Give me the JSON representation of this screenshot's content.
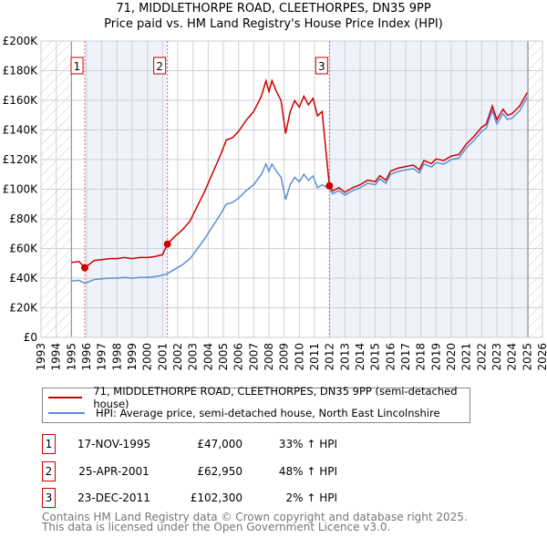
{
  "header": {
    "title": "71, MIDDLETHORPE ROAD, CLEETHORPES, DN35 9PP",
    "subtitle": "Price paid vs. HM Land Registry's House Price Index (HPI)"
  },
  "colors": {
    "property": "#cc0000",
    "hpi": "#5b8fd4",
    "band": "#eef3fb"
  },
  "chart_data": {
    "type": "line",
    "title": "71, MIDDLETHORPE ROAD, CLEETHORPES, DN35 9PP",
    "xlim": [
      1993,
      2026
    ],
    "ylim": [
      0,
      200000
    ],
    "x_ticks": [
      "1993",
      "1994",
      "1995",
      "1996",
      "1997",
      "1998",
      "1999",
      "2000",
      "2001",
      "2002",
      "2003",
      "2004",
      "2005",
      "2006",
      "2007",
      "2008",
      "2009",
      "2010",
      "2011",
      "2012",
      "2013",
      "2014",
      "2015",
      "2016",
      "2017",
      "2018",
      "2019",
      "2020",
      "2021",
      "2022",
      "2023",
      "2024",
      "2025",
      "2026"
    ],
    "y_ticks": [
      {
        "v": 0,
        "label": "£0"
      },
      {
        "v": 20000,
        "label": "£20K"
      },
      {
        "v": 40000,
        "label": "£40K"
      },
      {
        "v": 60000,
        "label": "£60K"
      },
      {
        "v": 80000,
        "label": "£80K"
      },
      {
        "v": 100000,
        "label": "£100K"
      },
      {
        "v": 120000,
        "label": "£120K"
      },
      {
        "v": 140000,
        "label": "£140K"
      },
      {
        "v": 160000,
        "label": "£160K"
      },
      {
        "v": 180000,
        "label": "£180K"
      },
      {
        "v": 200000,
        "label": "£200K"
      }
    ],
    "grid": true,
    "x": [
      1995.0,
      1995.5,
      1995.88,
      1996.5,
      1997,
      1997.5,
      1998,
      1998.5,
      1999,
      1999.5,
      2000,
      2000.5,
      2001,
      2001.32,
      2001.8,
      2002.3,
      2002.8,
      2003.3,
      2003.8,
      2004.3,
      2004.8,
      2005.2,
      2005.6,
      2006,
      2006.5,
      2007,
      2007.5,
      2007.8,
      2008,
      2008.2,
      2008.5,
      2008.8,
      2009.1,
      2009.4,
      2009.7,
      2010,
      2010.3,
      2010.6,
      2010.9,
      2011.2,
      2011.5,
      2011.98,
      2012.2,
      2012.6,
      2013,
      2013.5,
      2014,
      2014.5,
      2015,
      2015.3,
      2015.7,
      2016,
      2016.5,
      2017,
      2017.5,
      2017.9,
      2018.2,
      2018.7,
      2019,
      2019.5,
      2020,
      2020.5,
      2021,
      2021.5,
      2022,
      2022.3,
      2022.7,
      2023,
      2023.4,
      2023.7,
      2024,
      2024.5,
      2025
    ],
    "series": [
      {
        "name": "71, MIDDLETHORPE ROAD, CLEETHORPES, DN35 9PP (semi-detached house)",
        "color": "#cc0000",
        "values": [
          50500,
          51200,
          47000,
          51900,
          52500,
          53200,
          53200,
          53900,
          53200,
          53900,
          53900,
          54500,
          55900,
          62950,
          68100,
          72500,
          78400,
          88800,
          99200,
          111000,
          122800,
          133200,
          134700,
          139100,
          146500,
          152400,
          162800,
          173200,
          165800,
          173200,
          165800,
          159800,
          137600,
          152400,
          159800,
          155400,
          162800,
          156900,
          161300,
          149500,
          152400,
          102300,
          98900,
          101000,
          97900,
          101000,
          103000,
          106100,
          105100,
          109100,
          106100,
          112200,
          114200,
          115300,
          116300,
          113200,
          119300,
          117300,
          120400,
          119300,
          122400,
          123400,
          130600,
          135700,
          141800,
          143800,
          156100,
          146900,
          154000,
          149900,
          151000,
          156100,
          165200
        ]
      },
      {
        "name": "HPI: Average price, semi-detached house, North East Lincolnshire",
        "color": "#5b8fd4",
        "values": [
          38000,
          38500,
          36500,
          39000,
          39500,
          40000,
          40000,
          40500,
          40000,
          40500,
          40500,
          41000,
          42000,
          43000,
          46000,
          49000,
          53000,
          60000,
          67000,
          75000,
          83000,
          90000,
          91000,
          94000,
          99000,
          103000,
          110000,
          117000,
          112000,
          117000,
          112000,
          108000,
          93000,
          103000,
          108000,
          105000,
          110000,
          106000,
          109000,
          101000,
          103000,
          100300,
          97000,
          99000,
          96000,
          99000,
          101000,
          104000,
          103000,
          107000,
          104000,
          110000,
          112000,
          113000,
          114000,
          111000,
          117000,
          115000,
          118000,
          117000,
          120000,
          121000,
          128000,
          133000,
          139000,
          141000,
          153000,
          144000,
          151000,
          147000,
          148000,
          153000,
          162000
        ]
      }
    ],
    "sales": [
      {
        "label": "1",
        "x": 1995.88,
        "y": 47000
      },
      {
        "label": "2",
        "x": 2001.32,
        "y": 62950
      },
      {
        "label": "3",
        "x": 2011.98,
        "y": 102300
      }
    ],
    "legend_position": "below"
  },
  "legend": {
    "property": "71, MIDDLETHORPE ROAD, CLEETHORPES, DN35 9PP (semi-detached house)",
    "hpi": "HPI: Average price, semi-detached house, North East Lincolnshire"
  },
  "transactions": [
    {
      "num": "1",
      "date": "17-NOV-1995",
      "price": "£47,000",
      "hpi": "33% ↑ HPI"
    },
    {
      "num": "2",
      "date": "25-APR-2001",
      "price": "£62,950",
      "hpi": "48% ↑ HPI"
    },
    {
      "num": "3",
      "date": "23-DEC-2011",
      "price": "£102,300",
      "hpi": "2% ↑ HPI"
    }
  ],
  "footer": {
    "line1": "Contains HM Land Registry data © Crown copyright and database right 2025.",
    "line2": "This data is licensed under the Open Government Licence v3.0."
  }
}
